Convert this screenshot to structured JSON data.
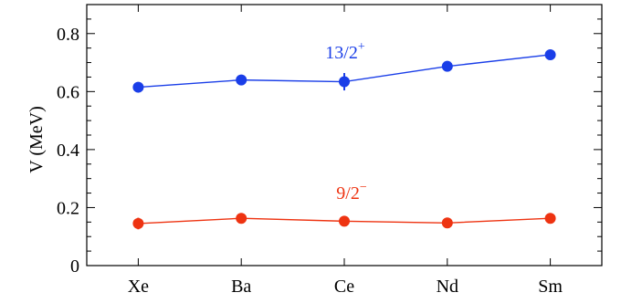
{
  "chart_data": {
    "type": "line",
    "title": "",
    "xlabel": "",
    "ylabel": "V (MeV)",
    "categories": [
      "Xe",
      "Ba",
      "Ce",
      "Nd",
      "Sm"
    ],
    "ylim": [
      0,
      0.9
    ],
    "yticks": [
      0,
      0.2,
      0.4,
      0.6,
      0.8
    ],
    "ytick_labels": [
      "0",
      "0.2",
      "0.4",
      "0.6",
      "0.8"
    ],
    "grid": false,
    "legend": "none",
    "series": [
      {
        "name": "13/2+",
        "label_base": "13/2",
        "label_sup": "+",
        "color": "#1a3ee8",
        "values": [
          0.615,
          0.64,
          0.634,
          0.687,
          0.727
        ],
        "errors": [
          0.008,
          0.01,
          0.03,
          0.008,
          0.008
        ]
      },
      {
        "name": "9/2−",
        "label_base": "9/2",
        "label_sup": "−",
        "color": "#ee3311",
        "values": [
          0.145,
          0.163,
          0.153,
          0.147,
          0.163
        ],
        "errors": [
          0.02,
          0.018,
          0.008,
          0.006,
          0.008
        ]
      }
    ]
  }
}
